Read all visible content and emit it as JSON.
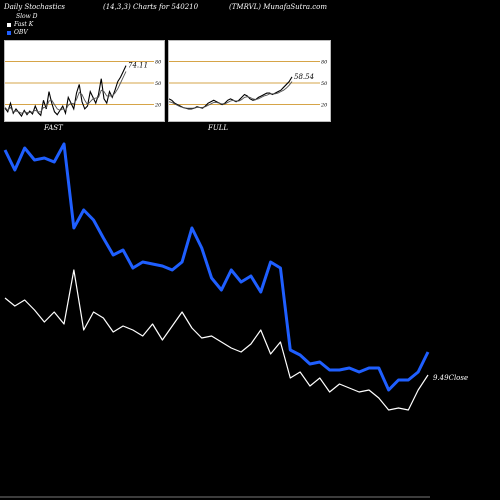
{
  "header": {
    "left": "Daily Stochastics",
    "center": "(14,3,3) Charts for 540210",
    "right": "(TMRVL) MunafaSutra.com"
  },
  "legend": [
    {
      "label": "Slow  D",
      "color": "#000000"
    },
    {
      "label": "Fast  K",
      "color": "#ffffff"
    },
    {
      "label": "OBV",
      "color": "#1f5fff"
    }
  ],
  "chart_data": [
    {
      "type": "line",
      "panel": "FAST",
      "label": "FAST",
      "ylim": [
        0,
        100
      ],
      "yticks": [
        20,
        50,
        80
      ],
      "reference_lines": [
        20,
        50,
        80
      ],
      "last_value_label": "74.11",
      "series": [
        {
          "values": [
            15,
            10,
            22,
            8,
            14,
            9,
            4,
            12,
            6,
            11,
            7,
            18,
            9,
            5,
            26,
            14,
            38,
            22,
            10,
            6,
            12,
            18,
            8,
            30,
            22,
            14,
            36,
            48,
            24,
            14,
            18,
            38,
            30,
            22,
            34,
            56,
            28,
            22,
            38,
            30,
            40,
            52,
            58,
            66,
            74.11
          ]
        },
        {
          "values": [
            16,
            12,
            16,
            10,
            11,
            10,
            8,
            10,
            9,
            9,
            10,
            12,
            10,
            10,
            16,
            16,
            25,
            26,
            20,
            14,
            12,
            14,
            12,
            19,
            22,
            21,
            27,
            37,
            34,
            26,
            20,
            24,
            28,
            29,
            30,
            40,
            38,
            32,
            32,
            32,
            36,
            42,
            50,
            58,
            66
          ]
        }
      ]
    },
    {
      "type": "line",
      "panel": "FULL",
      "label": "FULL",
      "ylim": [
        0,
        100
      ],
      "yticks": [
        20,
        50,
        80
      ],
      "reference_lines": [
        20,
        50,
        80
      ],
      "last_value_label": "58.54",
      "series": [
        {
          "values": [
            28,
            26,
            22,
            20,
            18,
            16,
            15,
            14,
            14,
            15,
            17,
            16,
            15,
            18,
            22,
            24,
            26,
            24,
            22,
            20,
            22,
            26,
            28,
            26,
            24,
            26,
            30,
            34,
            32,
            28,
            26,
            27,
            30,
            32,
            34,
            36,
            36,
            34,
            36,
            38,
            40,
            44,
            48,
            52,
            58.54
          ]
        },
        {
          "values": [
            24,
            23,
            21,
            19,
            17,
            16,
            15,
            15,
            15,
            15,
            16,
            16,
            16,
            17,
            19,
            21,
            23,
            23,
            22,
            21,
            21,
            23,
            25,
            26,
            25,
            25,
            27,
            30,
            31,
            30,
            28,
            27,
            28,
            30,
            32,
            33,
            35,
            35,
            35,
            36,
            38,
            40,
            43,
            47,
            52
          ]
        }
      ]
    },
    {
      "type": "line",
      "panel": "main",
      "close_label": "9.49Close",
      "series": [
        {
          "name": "OBV",
          "color": "#1f5fff",
          "values": [
            150,
            170,
            148,
            160,
            158,
            162,
            144,
            228,
            210,
            220,
            238,
            255,
            250,
            268,
            262,
            264,
            266,
            270,
            262,
            228,
            248,
            278,
            290,
            270,
            282,
            276,
            292,
            262,
            268,
            350,
            355,
            364,
            362,
            370,
            370,
            368,
            372,
            368,
            368,
            390,
            380,
            380,
            372,
            352
          ]
        },
        {
          "name": "Close",
          "color": "#ffffff",
          "values": [
            298,
            306,
            300,
            310,
            322,
            312,
            324,
            270,
            330,
            312,
            318,
            332,
            326,
            330,
            336,
            324,
            340,
            326,
            312,
            328,
            338,
            336,
            342,
            348,
            352,
            344,
            330,
            354,
            342,
            378,
            372,
            386,
            378,
            392,
            384,
            388,
            392,
            390,
            398,
            410,
            408,
            410,
            390,
            375
          ]
        }
      ]
    }
  ]
}
